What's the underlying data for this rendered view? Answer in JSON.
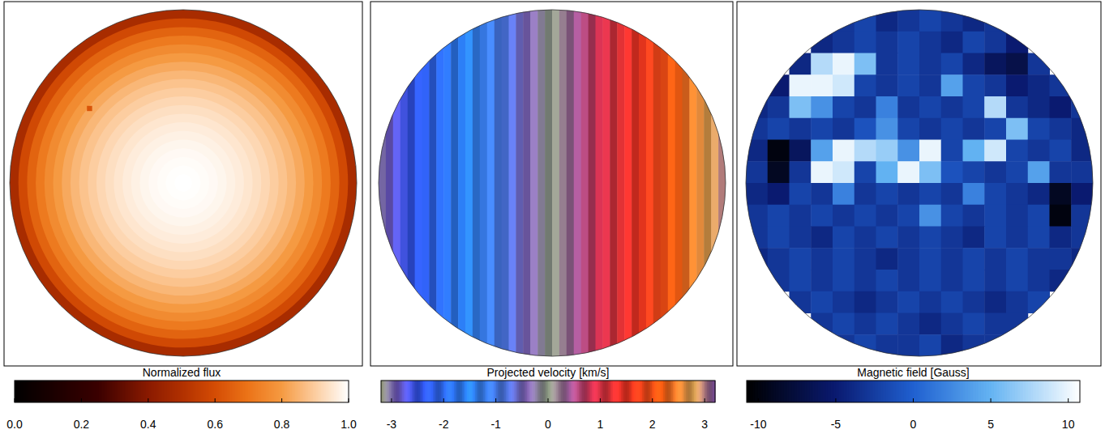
{
  "chart_data": [
    {
      "type": "heatmap",
      "xlim": [
        -1,
        1
      ],
      "ylim": [
        -1,
        1
      ],
      "tick_labels": false,
      "limb_profile": {
        "r": [
          0.05,
          0.1,
          0.15,
          0.2,
          0.25,
          0.3,
          0.35,
          0.4,
          0.45,
          0.5,
          0.55,
          0.6,
          0.65,
          0.7,
          0.75,
          0.8,
          0.85,
          0.9,
          0.95,
          1.0
        ],
        "values": [
          1.0,
          0.997,
          0.993,
          0.988,
          0.981,
          0.972,
          0.962,
          0.95,
          0.936,
          0.92,
          0.9,
          0.88,
          0.856,
          0.83,
          0.8,
          0.76,
          0.716,
          0.66,
          0.59,
          0.48
        ]
      },
      "spot": {
        "x": -0.54,
        "y": 0.43,
        "size": 0.03,
        "value": 0.62
      },
      "colorbar": {
        "title": "Normalized flux",
        "range": [
          0,
          1
        ],
        "ticks": [
          {
            "value": 0,
            "label": "0.0"
          },
          0.2,
          0.4,
          0.6,
          0.8,
          {
            "value": 1,
            "label": "1.0"
          }
        ]
      }
    },
    {
      "type": "heatmap",
      "xlim": [
        -1,
        1
      ],
      "ylim": [
        -1,
        1
      ],
      "tick_labels": false,
      "columns": {
        "x": [
          -0.979,
          -0.938,
          -0.896,
          -0.854,
          -0.812,
          -0.771,
          -0.729,
          -0.688,
          -0.646,
          -0.604,
          -0.562,
          -0.521,
          -0.479,
          -0.438,
          -0.396,
          -0.354,
          -0.312,
          -0.271,
          -0.229,
          -0.188,
          -0.146,
          -0.104,
          -0.062,
          -0.021,
          0.021,
          0.062,
          0.104,
          0.146,
          0.188,
          0.229,
          0.271,
          0.312,
          0.354,
          0.396,
          0.438,
          0.479,
          0.521,
          0.562,
          0.604,
          0.646,
          0.688,
          0.729,
          0.771,
          0.812,
          0.854,
          0.896,
          0.938,
          0.979
        ],
        "values": [
          -2.99,
          -2.86,
          -2.73,
          -2.6,
          -2.48,
          -2.35,
          -2.22,
          -2.1,
          -1.97,
          -1.84,
          -1.71,
          -1.59,
          -1.46,
          -1.34,
          -1.21,
          -1.08,
          -0.95,
          -0.83,
          -0.7,
          -0.57,
          -0.45,
          -0.32,
          -0.19,
          -0.06,
          0.06,
          0.19,
          0.32,
          0.45,
          0.57,
          0.7,
          0.83,
          0.95,
          1.08,
          1.21,
          1.34,
          1.46,
          1.59,
          1.71,
          1.84,
          1.97,
          2.1,
          2.22,
          2.35,
          2.48,
          2.6,
          2.73,
          2.86,
          2.99
        ]
      },
      "colorbar": {
        "title": "Projected velocity [km/s]",
        "range": [
          -3.2,
          3.2
        ],
        "ticks": [
          -3,
          -2,
          -1,
          0,
          1,
          2,
          3
        ]
      }
    },
    {
      "type": "heatmap",
      "xlim": [
        -1,
        1
      ],
      "ylim": [
        -1,
        1
      ],
      "tick_labels": false,
      "cells": [
        [
          null,
          null,
          null,
          null,
          -3,
          -2,
          -4,
          -3,
          -2,
          -3,
          -4,
          -3,
          null,
          null,
          null,
          null
        ],
        [
          null,
          null,
          null,
          -4,
          -3,
          -2,
          -3,
          -2,
          -3,
          -4,
          -2,
          -3,
          -5,
          null,
          null,
          null
        ],
        [
          null,
          null,
          -4,
          8,
          10,
          6,
          -3,
          -2,
          -3,
          -2,
          -4,
          -6,
          -7,
          -3,
          null,
          null
        ],
        [
          null,
          -5,
          10,
          10,
          9,
          -2,
          -3,
          -2,
          -3,
          4,
          -2,
          -3,
          -5,
          -4,
          -3,
          null
        ],
        [
          -4,
          -3,
          6,
          3,
          -2,
          -3,
          2,
          -3,
          -2,
          -3,
          -2,
          8,
          -3,
          -4,
          -5,
          -3
        ],
        [
          -3,
          -2,
          -3,
          -2,
          -3,
          -1,
          3,
          -2,
          -3,
          -2,
          -3,
          -2,
          6,
          -2,
          -3,
          -4
        ],
        [
          -4,
          -10,
          -6,
          4,
          10,
          8,
          7,
          3,
          10,
          -2,
          5,
          9,
          -2,
          -3,
          -2,
          -4
        ],
        [
          -3,
          -9,
          -3,
          10,
          9,
          -2,
          5,
          10,
          6,
          -1,
          -2,
          -3,
          -2,
          4,
          -3,
          -3
        ],
        [
          -4,
          -5,
          -2,
          -3,
          2,
          -3,
          -2,
          -3,
          -2,
          -3,
          2,
          -2,
          -3,
          -4,
          -9,
          -5
        ],
        [
          -3,
          -2,
          -3,
          -2,
          -3,
          -2,
          -3,
          -2,
          3,
          -2,
          -3,
          -2,
          -3,
          -2,
          -10,
          -3
        ],
        [
          -3,
          -2,
          -3,
          -4,
          -2,
          -3,
          -2,
          -3,
          -2,
          -3,
          -4,
          -2,
          -3,
          -2,
          -4,
          -3
        ],
        [
          -4,
          -3,
          -2,
          -3,
          -2,
          -3,
          -4,
          -3,
          -2,
          -3,
          -2,
          -3,
          -2,
          -3,
          -3,
          -4
        ],
        [
          null,
          -3,
          -2,
          -3,
          -2,
          -3,
          -2,
          -3,
          -2,
          -3,
          -2,
          -3,
          -2,
          -3,
          -4,
          null
        ],
        [
          null,
          null,
          -3,
          -2,
          -3,
          -4,
          -3,
          -2,
          -3,
          -2,
          -3,
          -4,
          -3,
          -2,
          null,
          null
        ],
        [
          null,
          null,
          null,
          -3,
          -2,
          -3,
          -2,
          -3,
          -4,
          -3,
          -2,
          -3,
          -3,
          null,
          null,
          null
        ],
        [
          null,
          null,
          null,
          null,
          -3,
          -2,
          -3,
          -3,
          -2,
          -4,
          -3,
          -3,
          null,
          null,
          null,
          null
        ]
      ],
      "colorbar": {
        "title": "Magnetic field [Gauss]",
        "range": [
          -10.75,
          10.75
        ],
        "ticks": [
          -10,
          -5,
          0,
          5,
          10
        ]
      }
    }
  ]
}
